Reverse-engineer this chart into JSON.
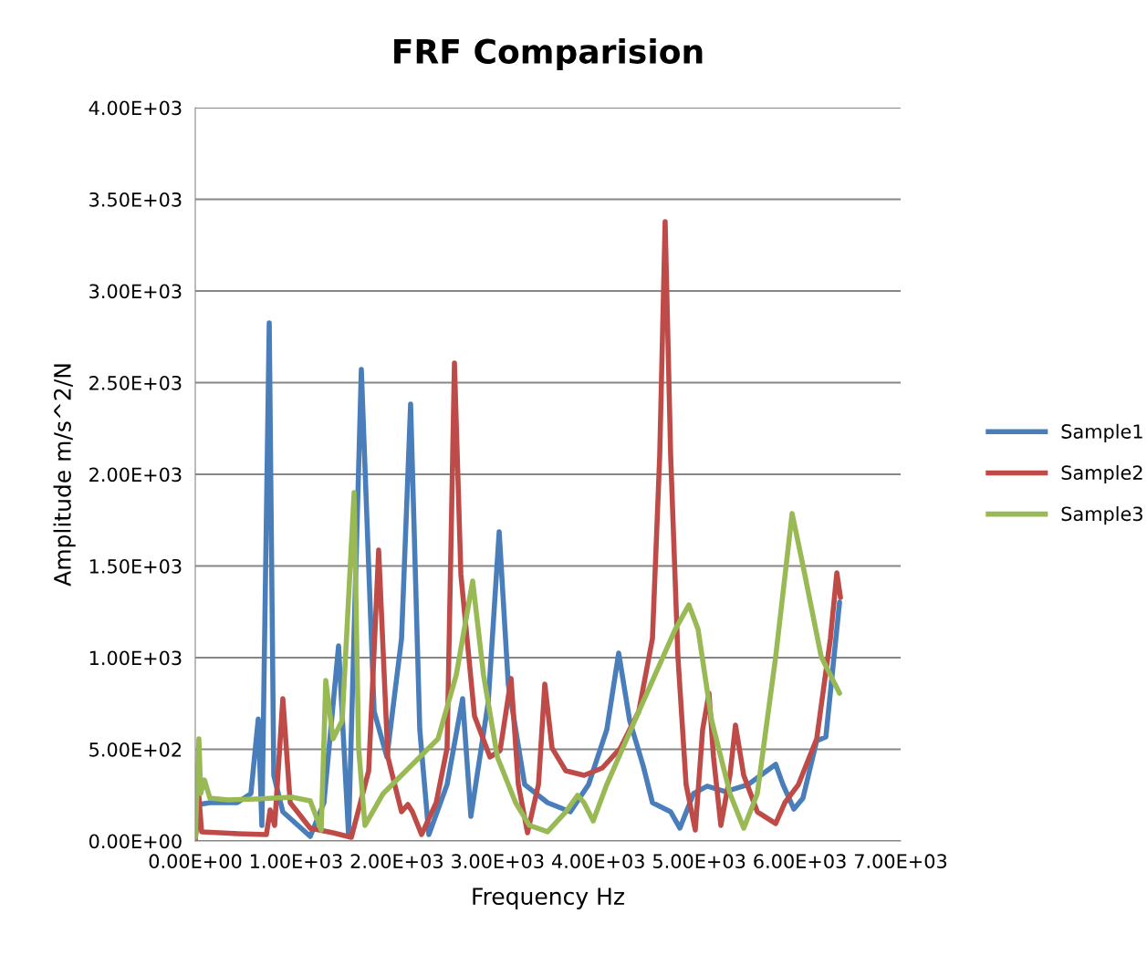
{
  "chart_data": {
    "type": "line",
    "title": "FRF Comparision",
    "xlabel": "Frequency Hz",
    "ylabel": "Amplitude m/s^2/N",
    "xlim": [
      0,
      7000
    ],
    "ylim": [
      0,
      4000
    ],
    "xticks": [
      {
        "value": 0,
        "label": "0.00E+00"
      },
      {
        "value": 1000,
        "label": "1.00E+03"
      },
      {
        "value": 2000,
        "label": "2.00E+03"
      },
      {
        "value": 3000,
        "label": "3.00E+03"
      },
      {
        "value": 4000,
        "label": "4.00E+03"
      },
      {
        "value": 5000,
        "label": "5.00E+03"
      },
      {
        "value": 6000,
        "label": "6.00E+03"
      },
      {
        "value": 7000,
        "label": "7.00E+03"
      }
    ],
    "yticks": [
      {
        "value": 0,
        "label": "0.00E+00"
      },
      {
        "value": 500,
        "label": "5.00E+02"
      },
      {
        "value": 1000,
        "label": "1.00E+03"
      },
      {
        "value": 1500,
        "label": "1.50E+03"
      },
      {
        "value": 2000,
        "label": "2.00E+03"
      },
      {
        "value": 2500,
        "label": "2.50E+03"
      },
      {
        "value": 3000,
        "label": "3.00E+03"
      },
      {
        "value": 3500,
        "label": "3.50E+03"
      },
      {
        "value": 4000,
        "label": "4.00E+03"
      }
    ],
    "grid": "y",
    "legend": "right",
    "marker": "none",
    "line_style": "solid",
    "series": [
      {
        "name": "Sample1",
        "color": "#4a7ebb",
        "x": [
          0,
          36,
          145,
          417,
          552,
          625,
          661,
          734,
          779,
          869,
          1141,
          1277,
          1422,
          1521,
          1648,
          1775,
          1902,
          2047,
          2137,
          2228,
          2318,
          2499,
          2653,
          2735,
          2907,
          3016,
          3106,
          3269,
          3496,
          3722,
          3903,
          4084,
          4202,
          4311,
          4446,
          4537,
          4718,
          4809,
          4945,
          5080,
          5261,
          5488,
          5760,
          5832,
          5941,
          6031,
          6167,
          6258,
          6394
        ],
        "values": [
          10,
          199,
          209,
          209,
          259,
          665,
          85,
          2826,
          358,
          159,
          25,
          209,
          1065,
          35,
          2572,
          706,
          458,
          1104,
          2383,
          607,
          35,
          308,
          776,
          134,
          756,
          1687,
          856,
          308,
          209,
          159,
          308,
          607,
          1025,
          657,
          408,
          209,
          159,
          70,
          259,
          299,
          269,
          308,
          418,
          308,
          174,
          234,
          547,
          567,
          1303
        ]
      },
      {
        "name": "Sample2",
        "color": "#be4b48",
        "x": [
          0,
          27,
          63,
          417,
          706,
          743,
          788,
          869,
          942,
          1141,
          1367,
          1549,
          1639,
          1721,
          1820,
          1911,
          2047,
          2110,
          2155,
          2246,
          2391,
          2499,
          2572,
          2636,
          2771,
          2925,
          3025,
          3134,
          3206,
          3297,
          3406,
          3469,
          3541,
          3677,
          3858,
          4039,
          4220,
          4401,
          4537,
          4609,
          4663,
          4718,
          4790,
          4871,
          4962,
          5035,
          5098,
          5143,
          5216,
          5306,
          5361,
          5443,
          5578,
          5760,
          5851,
          5986,
          6167,
          6303,
          6367,
          6403
        ],
        "values": [
          0,
          308,
          50,
          40,
          35,
          169,
          85,
          776,
          209,
          70,
          45,
          20,
          209,
          383,
          1587,
          458,
          159,
          199,
          159,
          35,
          209,
          507,
          2607,
          1453,
          682,
          458,
          493,
          886,
          308,
          45,
          308,
          856,
          507,
          383,
          358,
          398,
          507,
          706,
          1104,
          2099,
          3378,
          2099,
          1005,
          308,
          60,
          607,
          806,
          458,
          85,
          358,
          632,
          358,
          159,
          95,
          209,
          308,
          557,
          1104,
          1463,
          1328
        ]
      },
      {
        "name": "Sample3",
        "color": "#98b954",
        "x": [
          0,
          36,
          54,
          91,
          145,
          326,
          598,
          960,
          1141,
          1250,
          1295,
          1367,
          1458,
          1576,
          1621,
          1684,
          1865,
          2137,
          2409,
          2590,
          2753,
          2861,
          2998,
          3179,
          3315,
          3496,
          3677,
          3794,
          3858,
          3949,
          4084,
          4401,
          4763,
          4899,
          4990,
          5125,
          5306,
          5443,
          5578,
          5760,
          5923,
          6031,
          6212,
          6394
        ],
        "values": [
          20,
          557,
          259,
          333,
          234,
          224,
          229,
          239,
          219,
          60,
          876,
          557,
          657,
          1900,
          507,
          85,
          259,
          408,
          557,
          905,
          1418,
          905,
          458,
          209,
          85,
          50,
          159,
          249,
          209,
          109,
          308,
          706,
          1154,
          1288,
          1154,
          657,
          259,
          70,
          259,
          1005,
          1786,
          1502,
          1005,
          806
        ]
      }
    ]
  }
}
